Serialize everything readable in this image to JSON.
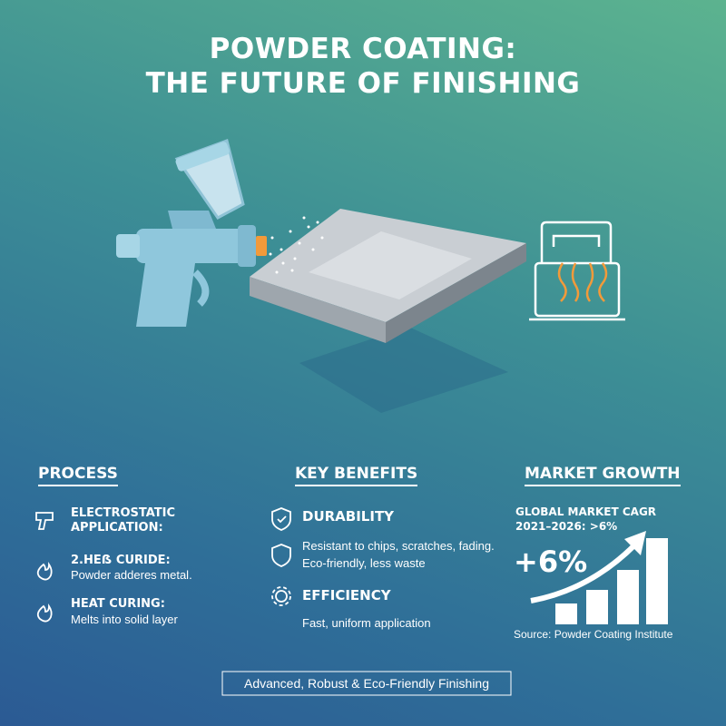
{
  "header": {
    "title_lines": [
      "POWDER COATING:",
      "THE FUTURE OF FINISHING"
    ]
  },
  "process": {
    "heading": "PROCESS",
    "items": [
      {
        "title": "ELECTROSTATIC APPLICATION:"
      },
      {
        "title": "2.HEẞ CURIDE:",
        "text": "Powder adderes metal."
      },
      {
        "title": "HEAT CURING:",
        "text": "Melts into solid layer"
      }
    ]
  },
  "benefits": {
    "heading": "KEY BENEFITS",
    "items": [
      {
        "title": "DURABILITY",
        "lines": [
          "Resistant to chips, scratches, fading.",
          "Eco-friendly, less waste"
        ]
      },
      {
        "title": "EFFICIENCY",
        "lines": [
          "Fast, uniform application"
        ]
      }
    ]
  },
  "market": {
    "heading": "MARKET GROWTH",
    "cagr": "GLOBAL MARKET CAGR 2021–2026: >6%",
    "big": "+6%",
    "source": "Source: Powder Coating Institute"
  },
  "footer": "Advanced, Robust & Eco-Friendly Finishing"
}
